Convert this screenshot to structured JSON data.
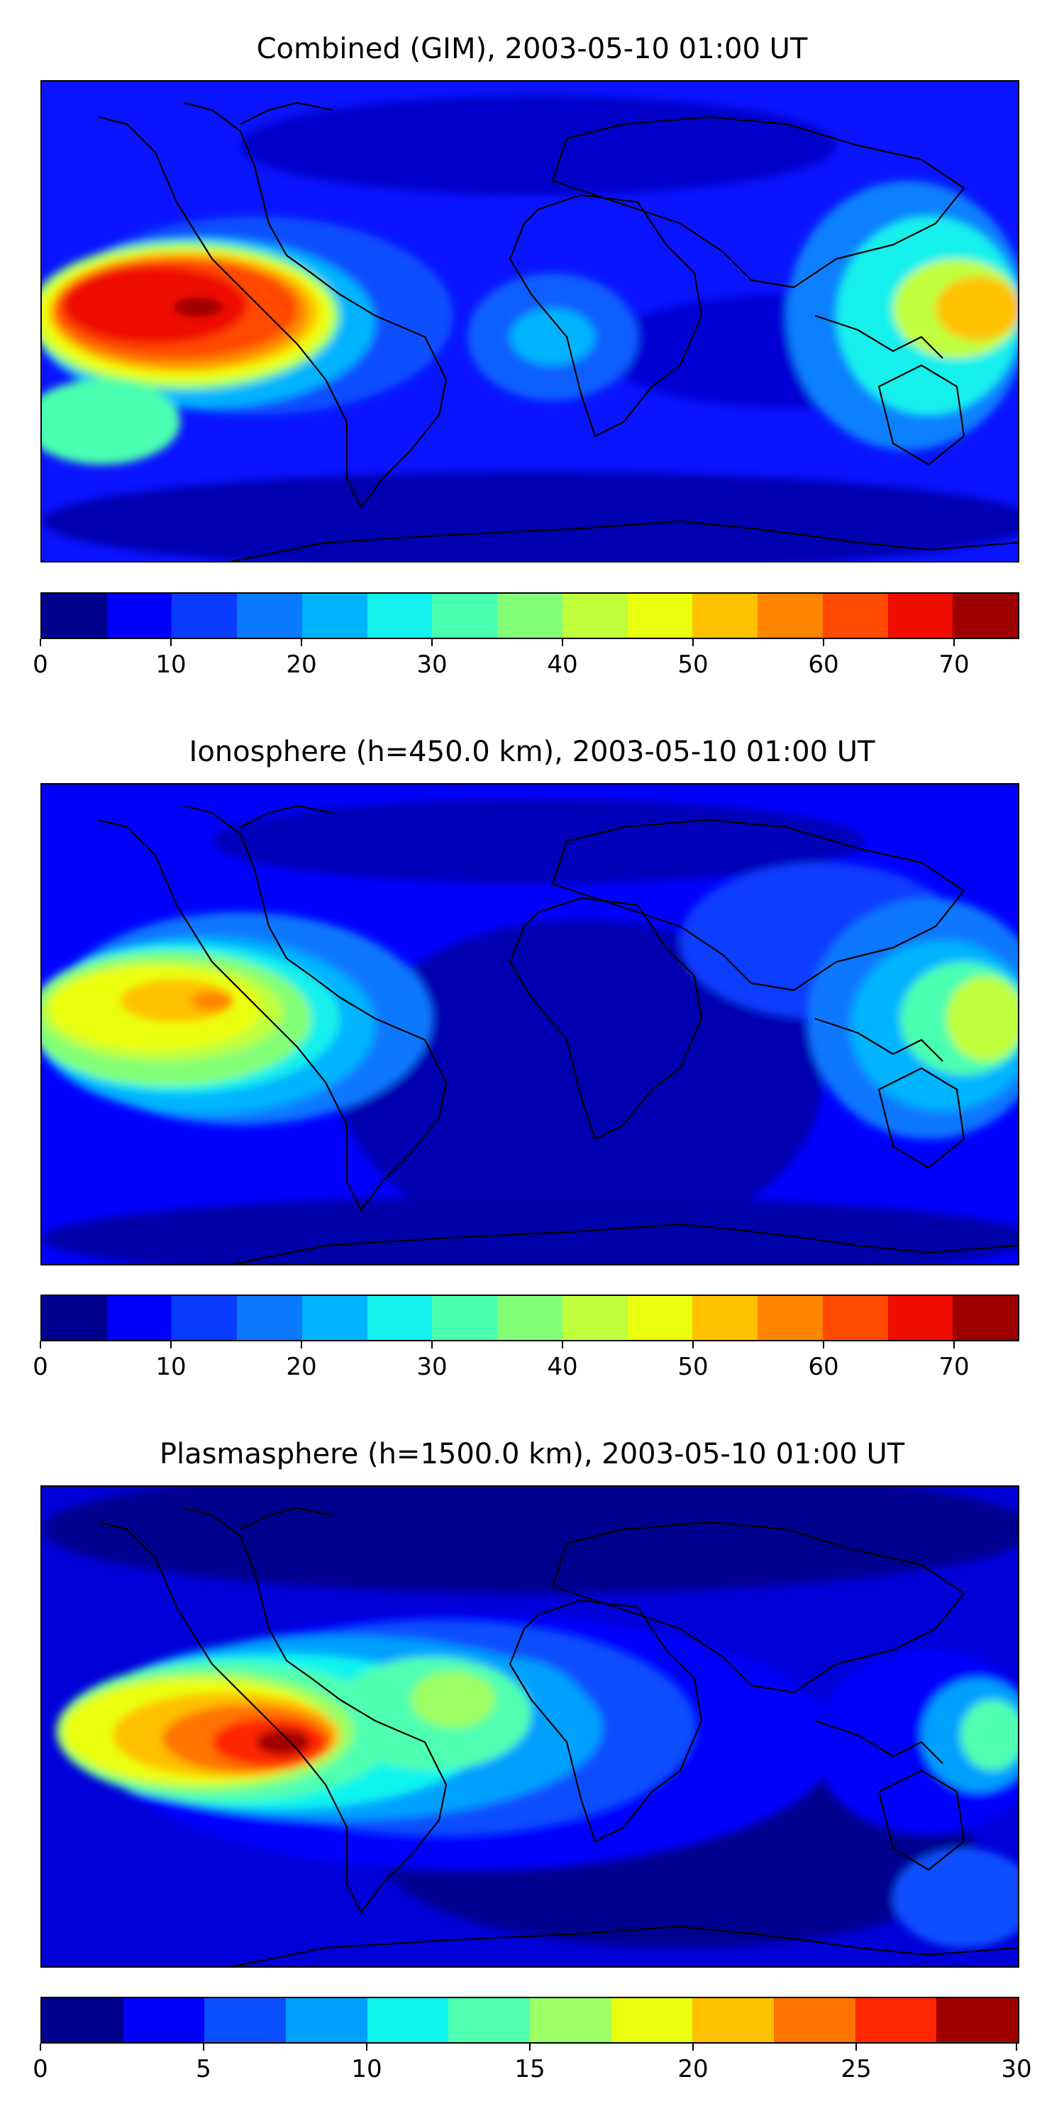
{
  "panels": [
    {
      "title": "Combined (GIM), 2003-05-10 01:00 UT",
      "colorbar": {
        "min": 0,
        "max": 75,
        "ticks": [
          "0",
          "10",
          "20",
          "30",
          "40",
          "50",
          "60",
          "70"
        ],
        "tick_values": [
          0,
          10,
          20,
          30,
          40,
          50,
          60,
          70
        ],
        "colors": [
          "#00008f",
          "#0000ff",
          "#0a3cff",
          "#0a78ff",
          "#00b4ff",
          "#14f0ec",
          "#49ffb0",
          "#83ff77",
          "#bfff3c",
          "#eaff10",
          "#ffc100",
          "#ff8500",
          "#ff4a00",
          "#ef0e00",
          "#9c0000"
        ]
      }
    },
    {
      "title": "Ionosphere  (h=450.0 km), 2003-05-10 01:00 UT",
      "colorbar": {
        "min": 0,
        "max": 75,
        "ticks": [
          "0",
          "10",
          "20",
          "30",
          "40",
          "50",
          "60",
          "70"
        ],
        "tick_values": [
          0,
          10,
          20,
          30,
          40,
          50,
          60,
          70
        ],
        "colors": [
          "#00008f",
          "#0000ff",
          "#0a3cff",
          "#0a78ff",
          "#00b4ff",
          "#14f0ec",
          "#49ffb0",
          "#83ff77",
          "#bfff3c",
          "#eaff10",
          "#ffc100",
          "#ff8500",
          "#ff4a00",
          "#ef0e00",
          "#9c0000"
        ]
      }
    },
    {
      "title": "Plasmasphere (h=1500.0 km), 2003-05-10 01:00 UT",
      "colorbar": {
        "min": 0,
        "max": 30,
        "ticks": [
          "0",
          "5",
          "10",
          "15",
          "20",
          "25",
          "30"
        ],
        "tick_values": [
          0,
          5,
          10,
          15,
          20,
          25,
          30
        ],
        "colors": [
          "#00008f",
          "#0000ff",
          "#0a50ff",
          "#00a0ff",
          "#10f4ee",
          "#50ffb0",
          "#9cff63",
          "#eaff10",
          "#ffc000",
          "#ff7400",
          "#ff2800",
          "#a00000"
        ]
      }
    }
  ]
}
